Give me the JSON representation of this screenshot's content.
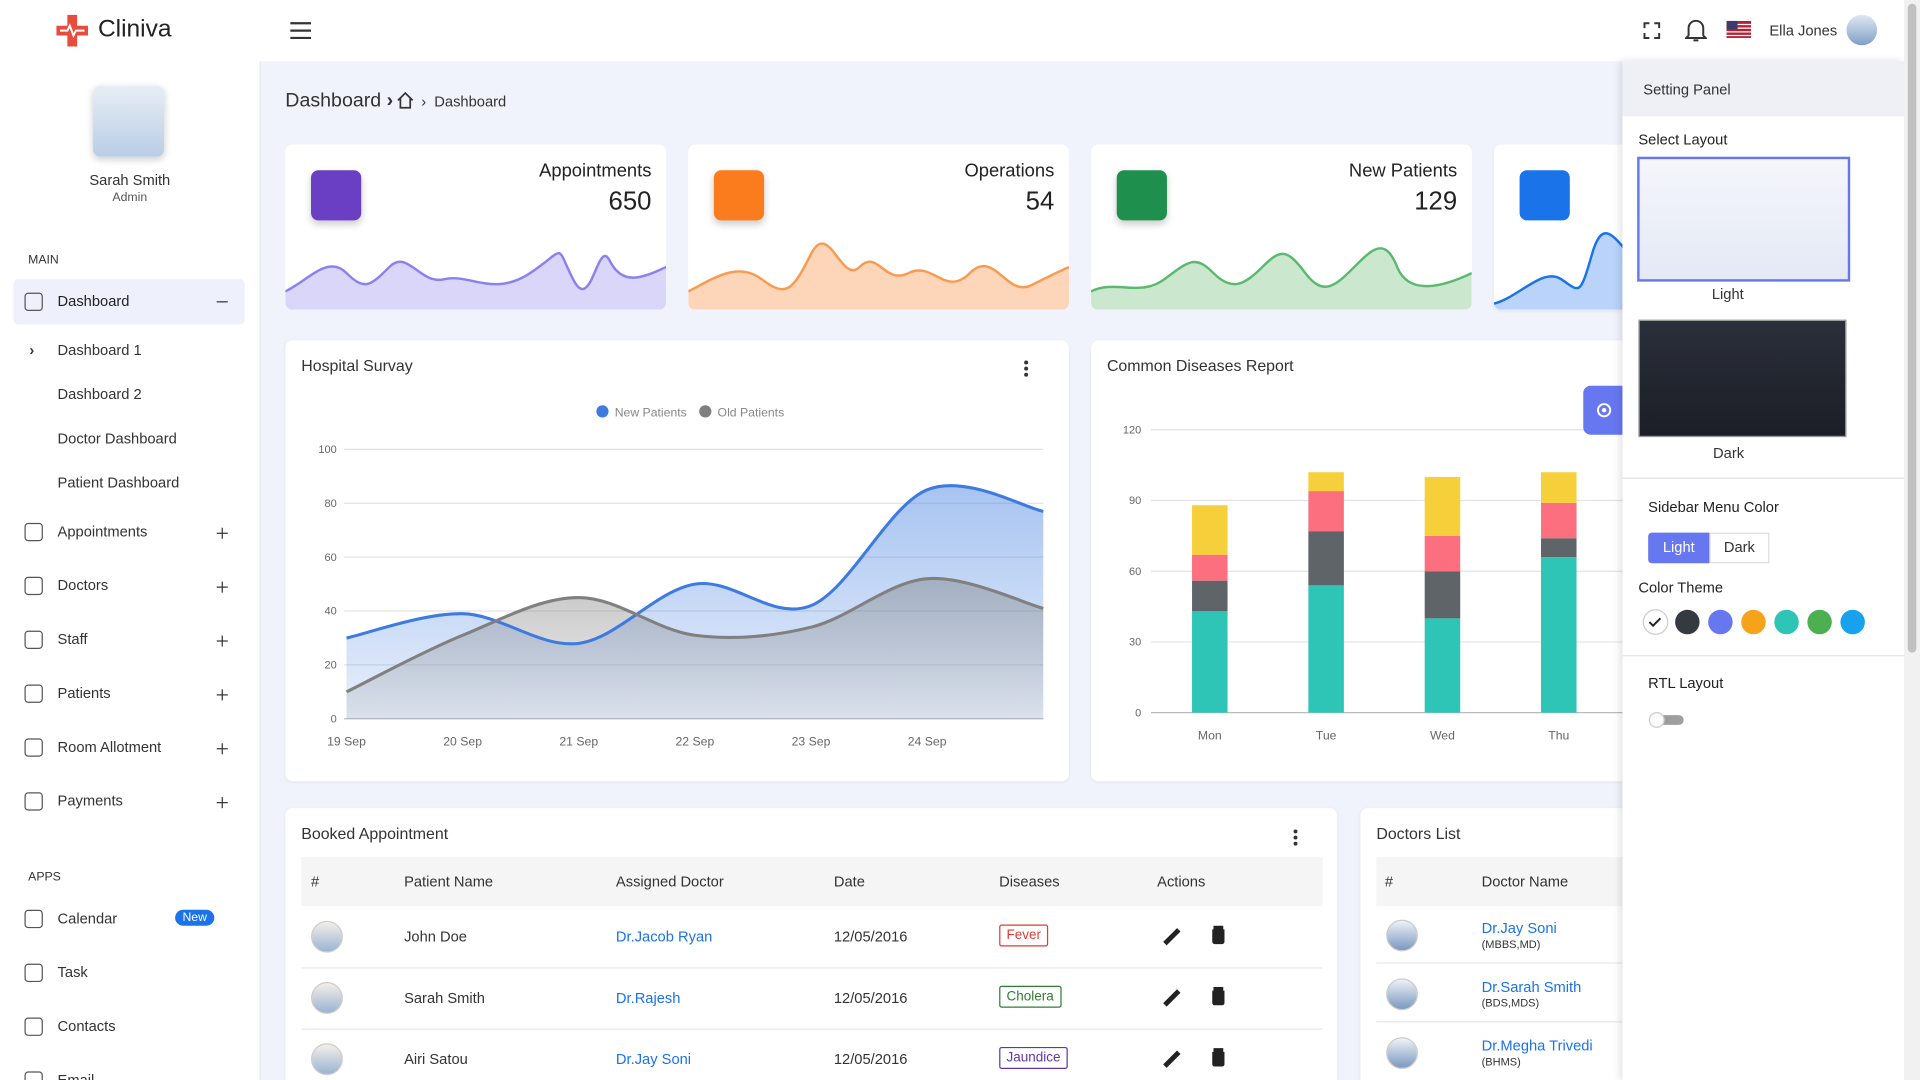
{
  "brand": "Cliniva",
  "profile": {
    "name": "Sarah Smith",
    "role": "Admin"
  },
  "header": {
    "user": "Ella Jones"
  },
  "sidebar": {
    "main": {
      "title": "MAIN",
      "items": [
        {
          "label": "Dashboard",
          "children": [
            "Dashboard 1",
            "Dashboard 2",
            "Doctor Dashboard",
            "Patient Dashboard"
          ]
        },
        {
          "label": "Appointments"
        },
        {
          "label": "Doctors"
        },
        {
          "label": "Staff"
        },
        {
          "label": "Patients"
        },
        {
          "label": "Room Allotment"
        },
        {
          "label": "Payments"
        }
      ]
    },
    "apps": {
      "title": "APPS",
      "items": [
        {
          "label": "Calendar",
          "badge": "New"
        },
        {
          "label": "Task"
        },
        {
          "label": "Contacts"
        },
        {
          "label": "Email"
        }
      ]
    }
  },
  "breadcrumb": {
    "title": "Dashboard",
    "current": "Dashboard"
  },
  "stats": [
    {
      "label": "Appointments",
      "value": "650"
    },
    {
      "label": "Operations",
      "value": "54"
    },
    {
      "label": "New Patients",
      "value": "129"
    }
  ],
  "chart_data": [
    {
      "type": "line",
      "title": "Hospital Survay",
      "categories": [
        "19 Sep",
        "20 Sep",
        "21 Sep",
        "22 Sep",
        "23 Sep",
        "24 Sep",
        null
      ],
      "series": [
        {
          "name": "New Patients",
          "color": "#3d7be0",
          "values": [
            30,
            39,
            28,
            50,
            42,
            85,
            77
          ]
        },
        {
          "name": "Old Patients",
          "color": "#808080",
          "values": [
            10,
            31,
            45,
            31,
            34,
            52,
            41
          ]
        }
      ],
      "ylim": [
        0,
        100
      ],
      "yticks": [
        0,
        20,
        40,
        60,
        80,
        100
      ],
      "grid": true,
      "legend": "top"
    },
    {
      "type": "stacked-bar",
      "title": "Common Diseases Report",
      "categories": [
        "Mon",
        "Tue",
        "Wed",
        "Thu"
      ],
      "series": [
        {
          "color": "#2ec4b6",
          "values": [
            43,
            54,
            40,
            66
          ]
        },
        {
          "color": "#5f6468",
          "values": [
            13,
            23,
            20,
            8
          ]
        },
        {
          "color": "#fb6f7f",
          "values": [
            11,
            17,
            15,
            15
          ]
        },
        {
          "color": "#f6d03a",
          "values": [
            21,
            8,
            25,
            13
          ]
        }
      ],
      "ylim": [
        0,
        120
      ],
      "yticks": [
        0,
        30,
        60,
        90,
        120
      ],
      "grid": true
    }
  ],
  "appointments": {
    "title": "Booked Appointment",
    "columns": [
      "#",
      "Patient Name",
      "Assigned Doctor",
      "Date",
      "Diseases",
      "Actions"
    ],
    "rows": [
      [
        "John Doe",
        "Dr.Jacob Ryan",
        "12/05/2016",
        "Fever"
      ],
      [
        "Sarah Smith",
        "Dr.Rajesh",
        "12/05/2016",
        "Cholera"
      ],
      [
        "Airi Satou",
        "Dr.Jay Soni",
        "12/05/2016",
        "Jaundice"
      ]
    ]
  },
  "doctors": {
    "title": "Doctors List",
    "columns": [
      "#",
      "Doctor Name"
    ],
    "rows": [
      [
        "Dr.Jay Soni",
        "(MBBS,MD)"
      ],
      [
        "Dr.Sarah Smith",
        "(BDS,MDS)"
      ],
      [
        "Dr.Megha Trivedi",
        "(BHMS)"
      ]
    ]
  },
  "settings": {
    "title": "Setting Panel",
    "layout_title": "Select Layout",
    "layouts": [
      "Light",
      "Dark"
    ],
    "menu_color_title": "Sidebar Menu Color",
    "menu_colors": [
      "Light",
      "Dark"
    ],
    "theme_title": "Color Theme",
    "rtl_title": "RTL Layout"
  }
}
